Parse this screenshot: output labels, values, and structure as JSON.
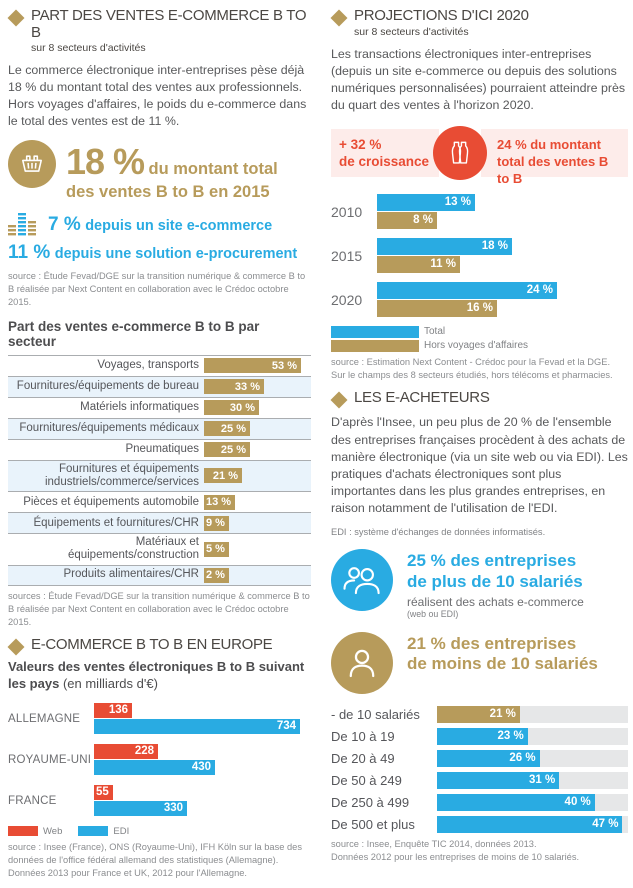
{
  "colors": {
    "gold": "#b79b5b",
    "blue": "#29abe2",
    "red": "#e84c34",
    "pink_bg": "#fdecea",
    "row_alt_bg": "#e9f3fb",
    "track_bg": "#e6e7e8"
  },
  "left": {
    "part": {
      "title": "PART DES VENTES E-COMMERCE B TO B",
      "subtitle": "sur 8 secteurs d'activités",
      "body": "Le commerce électronique inter-entreprises pèse déjà 18 % du montant total des ventes aux professionnels. Hors voyages d'affaires, le poids du e-commerce dans le total des ventes est de 11 %.",
      "stat_main_value": "18 %",
      "stat_main_label": "du montant total des ventes B to B en 2015",
      "stat_web_value": "7 %",
      "stat_web_label": "depuis un site e-commerce",
      "stat_proc_value": "11 %",
      "stat_proc_label": "depuis une solution e-procurement",
      "source": "source : Étude Fevad/DGE sur la transition numérique & commerce B to B réalisée par Next Content en collaboration avec le Crédoc octobre 2015."
    },
    "sector_chart": {
      "title": "Part des ventes e-commerce B to B par secteur",
      "source": "sources : Étude Fevad/DGE sur la transition numérique & commerce B to B réalisée par Next Content en collaboration avec le Crédoc octobre 2015."
    },
    "europe": {
      "title": "E-COMMERCE B TO B EN EUROPE",
      "subtitle_bold": "Valeurs des ventes électroniques B to B suivant les pays",
      "subtitle_note": "(en milliards d'€)",
      "legend": [
        "Web",
        "EDI"
      ],
      "source": "source : Insee (France), ONS (Royaume-Uni), IFH Köln sur la base des données de l'office fédéral allemand des statistiques (Allemagne).\nDonnées 2013 pour France et UK, 2012 pour l'Allemagne."
    }
  },
  "right": {
    "projections": {
      "title": "PROJECTIONS D'ICI 2020",
      "subtitle": "sur 8 secteurs d'activités",
      "body": "Les transactions électroniques inter-entreprises (depuis un site e-commerce ou depuis des solutions numériques personnalisées) pourraient atteindre près du quart des ventes à l'horizon 2020.",
      "growth_value": "+ 32 %",
      "growth_label": "de croissance",
      "share_text": "24 % du montant total des ventes B to B",
      "legend": [
        "Total",
        "Hors voyages d'affaires"
      ],
      "source": "source : Estimation Next Content - Crédoc pour la Fevad et la DGE.\nSur le champs des 8 secteurs étudiés, hors télécoms et pharmacies."
    },
    "eacheteurs": {
      "title": "LES E-ACHETEURS",
      "body": "D'après l'Insee, un peu plus de 20 % de l'ensemble des entreprises françaises procèdent à des achats de manière électronique (via un site web ou via EDI). Les pratiques d'achats électroniques sont plus importantes dans les plus grandes entreprises, en raison notamment de l'utilisation de l'EDI.",
      "edi_note": "EDI : système d'échanges de données informatisés.",
      "stat_over10_value": "25 %",
      "stat_over10_line1": "des entreprises",
      "stat_over10_line2": "de plus de 10 salariés",
      "stat_over10_sub": "réalisent des achats e-commerce",
      "stat_over10_sub2": "(web ou EDI)",
      "stat_under10_value": "21 %",
      "stat_under10_line1": "des entreprises",
      "stat_under10_line2": "de moins de 10 salariés",
      "source": "source : Insee, Enquête TIC 2014, données 2013.\nDonnées 2012 pour les entreprises de moins de 10 salariés."
    }
  },
  "chart_data": [
    {
      "type": "bar",
      "orientation": "horizontal",
      "title": "Part des ventes e-commerce B to B par secteur",
      "unit": "%",
      "bar_color": "#b79b5b",
      "categories": [
        "Voyages, transports",
        "Fournitures/équipements de bureau",
        "Matériels informatiques",
        "Fournitures/équipements médicaux",
        "Pneumatiques",
        "Fournitures et équipements industriels/commerce/services",
        "Pièces et équipements automobile",
        "Équipements et fournitures/CHR",
        "Matériaux et équipements/construction",
        "Produits alimentaires/CHR"
      ],
      "values": [
        53,
        33,
        30,
        25,
        25,
        21,
        13,
        9,
        5,
        2
      ]
    },
    {
      "type": "bar",
      "orientation": "horizontal",
      "title": "PROJECTIONS D'ICI 2020",
      "unit": "%",
      "categories": [
        "2010",
        "2015",
        "2020"
      ],
      "series": [
        {
          "name": "Total",
          "color": "#29abe2",
          "values": [
            13,
            18,
            24
          ]
        },
        {
          "name": "Hors voyages d'affaires",
          "color": "#b79b5b",
          "values": [
            8,
            11,
            16
          ]
        }
      ]
    },
    {
      "type": "bar",
      "orientation": "horizontal",
      "title": "Valeurs des ventes électroniques B to B suivant les pays",
      "unit": "milliards d'€",
      "categories": [
        "ALLEMAGNE",
        "ROYAUME-UNI",
        "FRANCE"
      ],
      "series": [
        {
          "name": "Web",
          "color": "#e84c34",
          "values": [
            136,
            228,
            55
          ]
        },
        {
          "name": "EDI",
          "color": "#29abe2",
          "values": [
            734,
            430,
            330
          ]
        }
      ]
    },
    {
      "type": "bar",
      "orientation": "horizontal",
      "unit": "%",
      "categories": [
        "- de 10 salariés",
        "De 10 à 19",
        "De 20 à 49",
        "De 50 à 249",
        "De 250 à 499",
        "De 500 et plus"
      ],
      "values": [
        21,
        23,
        26,
        31,
        40,
        47
      ],
      "bar_colors": [
        "#b79b5b",
        "#29abe2",
        "#29abe2",
        "#29abe2",
        "#29abe2",
        "#29abe2"
      ]
    }
  ]
}
